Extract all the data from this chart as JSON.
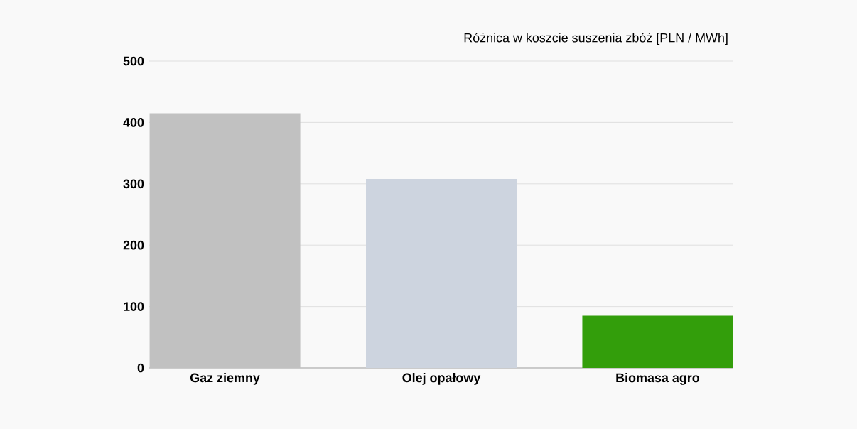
{
  "chart_data": {
    "type": "bar",
    "title": "Różnica w koszcie suszenia zbóż [PLN / MWh]",
    "categories": [
      "Gaz ziemny",
      "Olej opałowy",
      "Biomasa agro"
    ],
    "values": [
      415,
      308,
      85
    ],
    "colors": [
      "#c1c1c1",
      "#cdd4df",
      "#339e0b"
    ],
    "ylim": [
      0,
      500
    ],
    "yticks": [
      0,
      100,
      200,
      300,
      400,
      500
    ],
    "grid": "y"
  }
}
